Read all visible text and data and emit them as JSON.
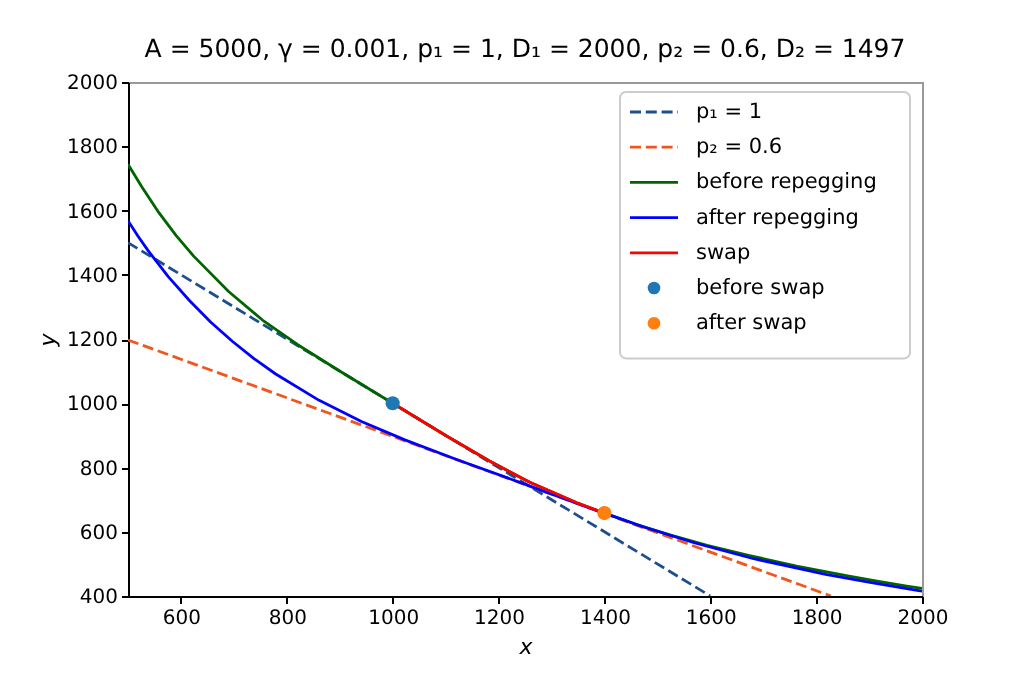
{
  "chart_data": {
    "type": "line",
    "title": "A = 5000, γ = 0.001, p₁ = 1, D₁ = 2000, p₂ = 0.6, D₂ = 1497",
    "xlabel": "x",
    "ylabel": "y",
    "xlim": [
      500,
      2000
    ],
    "ylim": [
      400,
      2000
    ],
    "xticks": [
      600,
      800,
      1000,
      1200,
      1400,
      1600,
      1800,
      2000
    ],
    "yticks": [
      400,
      600,
      800,
      1000,
      1200,
      1400,
      1600,
      1800,
      2000
    ],
    "grid": false,
    "legend": "top right",
    "series": [
      {
        "name": "p₁ = 1",
        "color": "#1f4e8c",
        "line_style": "dashed",
        "x": [
          500,
          1600
        ],
        "values": [
          1500,
          400
        ]
      },
      {
        "name": "p₂ = 0.6",
        "color": "#f0561e",
        "line_style": "dashed",
        "x": [
          500,
          1828
        ],
        "values": [
          1197,
          400
        ]
      },
      {
        "name": "before repegging",
        "color": "#006400",
        "line_style": "solid",
        "x": [
          500,
          526,
          558,
          591,
          624,
          690,
          754,
          820,
          899,
          1000,
          1101,
          1183,
          1259,
          1348,
          1400,
          1458,
          1522,
          1594,
          1674,
          1763,
          1862,
          1915,
          1971,
          2000
        ],
        "values": [
          1744,
          1674,
          1594,
          1522,
          1458,
          1348,
          1259,
          1183,
          1101,
          1000,
          899,
          820,
          754,
          690,
          658,
          624,
          591,
          558,
          526,
          493,
          462,
          446,
          431,
          424
        ]
      },
      {
        "name": "after repegging",
        "color": "#0000ff",
        "line_style": "solid",
        "x": [
          500,
          519,
          538,
          576,
          616,
          656,
          697,
          738,
          779,
          861,
          941,
          1023,
          1122,
          1248,
          1373,
          1400,
          1476,
          1571,
          1682,
          1818,
          1899,
          1988,
          2000
        ],
        "values": [
          1568,
          1520,
          1475,
          1394,
          1320,
          1253,
          1193,
          1139,
          1091,
          1009,
          943,
          886,
          824,
          749,
          673,
          658,
          614,
          565,
          516,
          467,
          443,
          418,
          415
        ]
      },
      {
        "name": "swap",
        "color": "#ff0000",
        "line_style": "solid",
        "x": [
          1000,
          1101,
          1183,
          1259,
          1348,
          1400
        ],
        "values": [
          1000,
          899,
          820,
          754,
          690,
          658
        ]
      },
      {
        "name": "before swap",
        "color": "#1f77b4",
        "type": "scatter",
        "marker": "circle",
        "x": [
          1000
        ],
        "values": [
          1000
        ]
      },
      {
        "name": "after swap",
        "color": "#ff7f0e",
        "type": "scatter",
        "marker": "circle",
        "x": [
          1400
        ],
        "values": [
          658
        ]
      }
    ]
  }
}
